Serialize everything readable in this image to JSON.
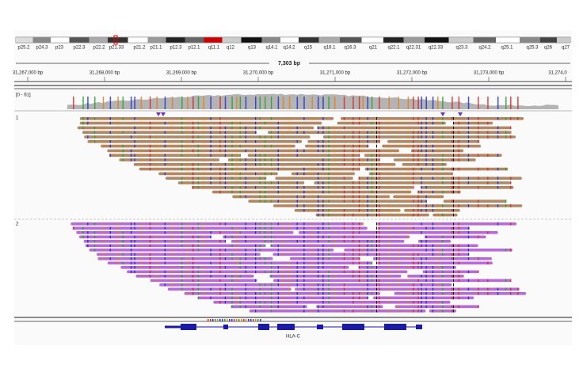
{
  "ideogram": {
    "bands": [
      "p25.2",
      "p24.3",
      "p23",
      "p22.3",
      "p22.2",
      "p21.33",
      "p21.2",
      "p21.1",
      "p12.3",
      "p12.1",
      "q11.1",
      "q12",
      "q13",
      "q14.1",
      "q14.2",
      "q15",
      "q16.1",
      "q16.3",
      "q21",
      "q22.1",
      "q22.31",
      "q22.33",
      "q23.3",
      "q24.2",
      "q25.1",
      "q25.3",
      "q26",
      "q27"
    ]
  },
  "ruler": {
    "span": "7,303 bp",
    "ticks": [
      "31,267,000 bp",
      "31,268,000 bp",
      "31,269,000 bp",
      "31,270,000 bp",
      "31,271,000 bp",
      "31,272,000 bp",
      "31,273,000 bp",
      "31,274,0"
    ]
  },
  "coverage": {
    "range": "[0 - 61]"
  },
  "groups": [
    {
      "label": "1"
    },
    {
      "label": "2"
    }
  ],
  "gene": {
    "name": "HLA-C"
  }
}
